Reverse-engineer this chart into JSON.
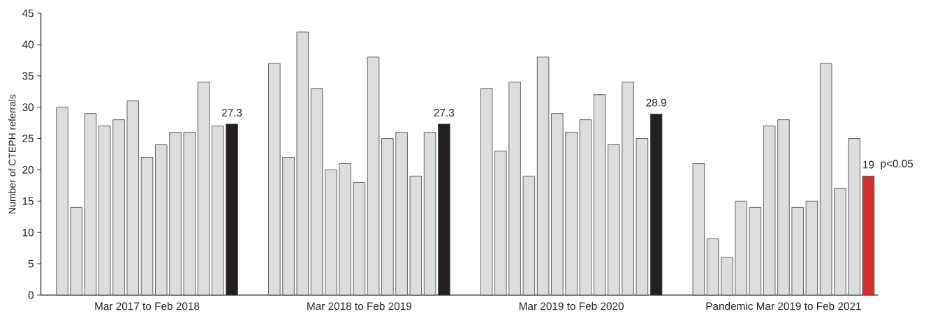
{
  "chart_data": {
    "type": "bar",
    "ylabel": "Number of CTEPH referrals",
    "categories": [
      null,
      null,
      null,
      null,
      null,
      null,
      "Mar 2017 to Feb 2018",
      null,
      null,
      null,
      null,
      null,
      null,
      null,
      null,
      null,
      null,
      null,
      null,
      null,
      null,
      "Mar 2018 to Feb 2019",
      null,
      null,
      null,
      null,
      null,
      null,
      null,
      null,
      null,
      null,
      null,
      null,
      null,
      null,
      "Mar 2019 to Feb 2020",
      null,
      null,
      null,
      null,
      null,
      null,
      null,
      null,
      null,
      null,
      null,
      null,
      null,
      null,
      "Pandemic Mar 2019 to Feb 2021",
      null,
      null,
      null,
      null,
      null,
      null
    ],
    "values": [
      30,
      14,
      29,
      27,
      28,
      31,
      22,
      24,
      26,
      26,
      34,
      27,
      27.3,
      null,
      null,
      37,
      22,
      42,
      33,
      20,
      21,
      18,
      38,
      25,
      26,
      19,
      26,
      27.3,
      null,
      null,
      33,
      23,
      34,
      19,
      38,
      29,
      26,
      28,
      32,
      24,
      34,
      25,
      28.9,
      null,
      null,
      21,
      9,
      6,
      15,
      14,
      27,
      28,
      14,
      15,
      37,
      17,
      25,
      19
    ],
    "colors": [
      "#dcdddf",
      "#dcdddf",
      "#dcdddf",
      "#dcdddf",
      "#dcdddf",
      "#dcdddf",
      "#dcdddf",
      "#dcdddf",
      "#dcdddf",
      "#dcdddf",
      "#dcdddf",
      "#dcdddf",
      "#231f20",
      null,
      null,
      "#dcdddf",
      "#dcdddf",
      "#dcdddf",
      "#dcdddf",
      "#dcdddf",
      "#dcdddf",
      "#dcdddf",
      "#dcdddf",
      "#dcdddf",
      "#dcdddf",
      "#dcdddf",
      "#dcdddf",
      "#231f20",
      null,
      null,
      "#dcdddf",
      "#dcdddf",
      "#dcdddf",
      "#dcdddf",
      "#dcdddf",
      "#dcdddf",
      "#dcdddf",
      "#dcdddf",
      "#dcdddf",
      "#dcdddf",
      "#dcdddf",
      "#dcdddf",
      "#231f20",
      null,
      null,
      "#dcdddf",
      "#dcdddf",
      "#dcdddf",
      "#dcdddf",
      "#dcdddf",
      "#dcdddf",
      "#dcdddf",
      "#dcdddf",
      "#dcdddf",
      "#dcdddf",
      "#dcdddf",
      "#dcdddf",
      "#d4302d"
    ],
    "value_labels": [
      null,
      null,
      null,
      null,
      null,
      null,
      null,
      null,
      null,
      null,
      null,
      null,
      "27.3",
      null,
      null,
      null,
      null,
      null,
      null,
      null,
      null,
      null,
      null,
      null,
      null,
      null,
      null,
      "27.3",
      null,
      null,
      null,
      null,
      null,
      null,
      null,
      null,
      null,
      null,
      null,
      null,
      null,
      null,
      "28.9",
      null,
      null,
      null,
      null,
      null,
      null,
      null,
      null,
      null,
      null,
      null,
      null,
      null,
      null,
      "19"
    ],
    "annotations": [
      "p<0.05"
    ],
    "ylim": [
      0,
      45
    ],
    "yticks": [
      0,
      5,
      10,
      15,
      20,
      25,
      30,
      35,
      40,
      45
    ],
    "grid": false
  }
}
